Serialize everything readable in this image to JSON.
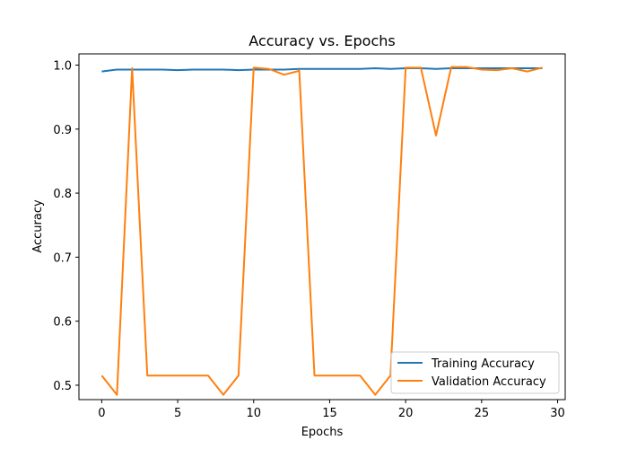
{
  "chart_data": {
    "type": "line",
    "title": "Accuracy vs. Epochs",
    "xlabel": "Epochs",
    "ylabel": "Accuracy",
    "xlim": [
      -1.5,
      30.5
    ],
    "ylim": [
      0.4775,
      1.0175
    ],
    "xticks": [
      0,
      5,
      10,
      15,
      20,
      25,
      30
    ],
    "yticks": [
      0.5,
      0.6,
      0.7,
      0.8,
      0.9,
      1.0
    ],
    "yticklabels": [
      "0.5",
      "0.6",
      "0.7",
      "0.8",
      "0.9",
      "1.0"
    ],
    "grid": false,
    "legend_position": "lower-right",
    "x": [
      0,
      1,
      2,
      3,
      4,
      5,
      6,
      7,
      8,
      9,
      10,
      11,
      12,
      13,
      14,
      15,
      16,
      17,
      18,
      19,
      20,
      21,
      22,
      23,
      24,
      25,
      26,
      27,
      28,
      29
    ],
    "series": [
      {
        "name": "Training Accuracy",
        "color": "#1f77b4",
        "values": [
          0.99,
          0.993,
          0.993,
          0.993,
          0.993,
          0.992,
          0.993,
          0.993,
          0.993,
          0.992,
          0.993,
          0.993,
          0.993,
          0.994,
          0.994,
          0.994,
          0.994,
          0.994,
          0.995,
          0.994,
          0.995,
          0.995,
          0.994,
          0.995,
          0.995,
          0.995,
          0.995,
          0.995,
          0.995,
          0.995
        ]
      },
      {
        "name": "Validation Accuracy",
        "color": "#ff7f0e",
        "values": [
          0.515,
          0.485,
          0.995,
          0.515,
          0.515,
          0.515,
          0.515,
          0.515,
          0.485,
          0.515,
          0.996,
          0.994,
          0.985,
          0.991,
          0.515,
          0.515,
          0.515,
          0.515,
          0.485,
          0.515,
          0.996,
          0.996,
          0.89,
          0.997,
          0.997,
          0.993,
          0.992,
          0.995,
          0.99,
          0.996
        ]
      }
    ]
  }
}
